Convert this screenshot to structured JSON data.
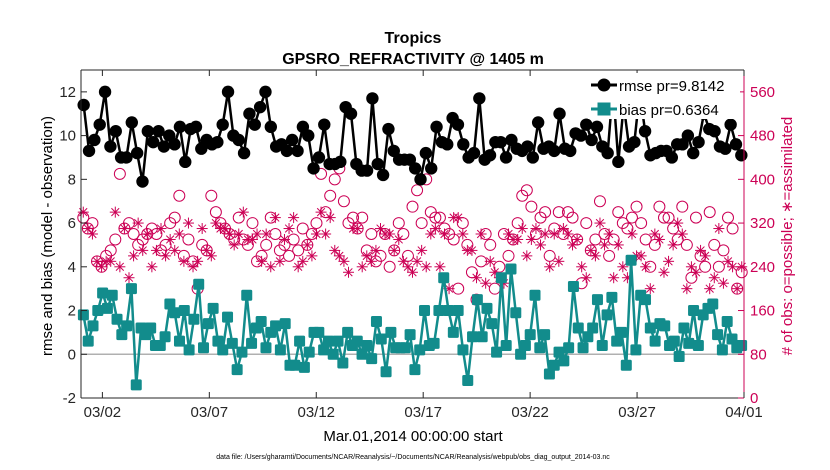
{
  "chart_data": {
    "type": "line",
    "title": "Tropics",
    "subtitle": "GPSRO_REFRACTIVITY @ 1405 m",
    "xlabel": "Mar.01,2014 00:00:00 start",
    "ylabel": "rmse and bias (model - observation)",
    "ylabel_right": "# of obs: o=possible; ∗=assimilated",
    "xlim": [
      0,
      31
    ],
    "ylim": [
      -2,
      13
    ],
    "ylim_right": [
      0,
      600
    ],
    "x_tick_values": [
      1,
      6,
      11,
      16,
      21,
      26,
      31
    ],
    "x_tick_labels": [
      "03/02",
      "03/07",
      "03/12",
      "03/17",
      "03/22",
      "03/27",
      "04/01"
    ],
    "y_ticks": [
      -2,
      0,
      2,
      4,
      6,
      8,
      10,
      12
    ],
    "y_ticks_right": [
      0,
      80,
      160,
      240,
      320,
      400,
      480,
      560
    ],
    "footnote": "data file: /Users/gharamti/Documents/NCAR/Reanalysis/~/Documents/NCAR/Reanalysis/webpub/obs_diag_output_2014-03.nc",
    "legend": {
      "location": "top-right",
      "entries": [
        "rmse pr=9.8142",
        "bias pr=0.6364"
      ]
    },
    "colors": {
      "rmse": "#000000",
      "bias": "#128C8C",
      "obs": "#CC0055",
      "zero_line": "#B0B0B0"
    },
    "series": [
      {
        "name": "rmse",
        "axis": "left",
        "values": [
          11.4,
          9.3,
          9.8,
          10.5,
          12.0,
          9.5,
          10.2,
          9.0,
          9.0,
          10.6,
          9.2,
          7.9,
          10.2,
          9.7,
          10.2,
          9.5,
          10.0,
          9.6,
          10.4,
          8.8,
          10.3,
          10.4,
          9.4,
          9.8,
          9.6,
          9.7,
          10.5,
          12.0,
          10.0,
          9.8,
          9.2,
          11.0,
          10.5,
          11.3,
          12.0,
          10.4,
          9.5,
          9.6,
          9.3,
          9.8,
          9.3,
          10.4,
          10.0,
          8.5,
          9.0,
          10.5,
          8.7,
          8.7,
          8.8,
          11.3,
          11.0,
          8.7,
          8.4,
          8.4,
          11.7,
          8.7,
          8.2,
          10.3,
          9.3,
          8.9,
          8.9,
          8.9,
          8.5,
          8.0,
          9.2,
          8.5,
          10.4,
          9.7,
          9.6,
          10.8,
          10.5,
          9.6,
          9.0,
          9.2,
          11.7,
          8.9,
          9.1,
          9.7,
          9.7,
          9.0,
          9.8,
          9.4,
          9.3,
          9.5,
          9.0,
          10.6,
          9.4,
          9.5,
          9.3,
          11.0,
          9.4,
          9.3,
          10.1,
          10.0,
          10.5,
          9.8,
          10.4,
          9.5,
          9.2,
          12.2,
          8.8,
          11.4,
          9.5,
          9.7,
          12.0,
          10.2,
          9.1,
          9.2,
          9.3,
          9.3,
          9.0,
          9.6,
          9.6,
          10.0,
          9.2,
          9.7,
          11.0,
          10.3,
          10.2,
          9.5,
          9.4,
          10.5,
          9.6,
          9.1
        ]
      },
      {
        "name": "bias",
        "axis": "left",
        "values": [
          1.8,
          0.6,
          1.3,
          2.0,
          2.8,
          2.1,
          2.7,
          1.6,
          0.9,
          1.3,
          3.0,
          -1.4,
          1.2,
          0.9,
          1.2,
          0.4,
          0.4,
          0.8,
          2.3,
          1.9,
          0.6,
          2.0,
          0.2,
          1.6,
          3.2,
          0.3,
          1.4,
          2.1,
          0.6,
          0.2,
          1.7,
          0.5,
          -0.7,
          0.1,
          2.7,
          0.5,
          1.2,
          1.5,
          0.3,
          1.0,
          1.3,
          0.2,
          1.4,
          -0.5,
          -0.5,
          0.6,
          -0.6,
          0.1,
          1.0,
          1.0,
          0.2,
          0.6,
          0.0,
          0.6,
          -0.4,
          1.0,
          0.4,
          0.6,
          0.0,
          0.4,
          -0.2,
          1.5,
          0.7,
          -0.8,
          1.0,
          0.3,
          0.3,
          0.3,
          0.9,
          -0.7,
          0.2,
          2.0,
          0.4,
          0.5,
          2.0,
          3.5,
          2.0,
          1.0,
          2.0,
          0.2,
          -1.2,
          0.8,
          2.5,
          0.8,
          2.1,
          1.4,
          0.1,
          3.5,
          0.4,
          3.9,
          1.9,
          0.0,
          0.4,
          0.9,
          2.7,
          0.3,
          0.9,
          -0.9,
          -0.5,
          0.1,
          -0.3,
          0.3,
          3.1,
          1.2,
          0.3,
          0.8,
          1.2,
          2.5,
          0.4,
          1.8,
          2.6,
          0.6,
          1.0,
          -0.5,
          4.3,
          0.2,
          2.7,
          2.5,
          1.2,
          0.6,
          1.4,
          1.3,
          0.4,
          0.6,
          -0.1,
          1.2,
          0.5,
          2.0,
          0.4,
          1.8,
          2.1,
          2.3,
          0.9,
          0.2,
          1.5,
          0.7,
          0.3,
          0.4
        ]
      },
      {
        "name": "obs possible",
        "axis": "right",
        "values": [
          330,
          310,
          320,
          250,
          240,
          260,
          270,
          290,
          410,
          310,
          320,
          300,
          280,
          290,
          300,
          310,
          300,
          270,
          280,
          320,
          330,
          370,
          260,
          290,
          250,
          200,
          280,
          270,
          370,
          340,
          320,
          310,
          300,
          290,
          330,
          290,
          280,
          320,
          250,
          260,
          280,
          330,
          300,
          270,
          280,
          260,
          290,
          270,
          310,
          280,
          300,
          320,
          410,
          340,
          370,
          400,
          420,
          360,
          320,
          330,
          310,
          330,
          270,
          300,
          250,
          260,
          300,
          240,
          270,
          320,
          300,
          260,
          350,
          380,
          320,
          400,
          340,
          330,
          330,
          310,
          300,
          290,
          200,
          320,
          280,
          230,
          180,
          250,
          300,
          280,
          200,
          240,
          300,
          260,
          290,
          320,
          370,
          380,
          350,
          300,
          330,
          340,
          260,
          310,
          340,
          300,
          340,
          330,
          290,
          210,
          320,
          270,
          290,
          360,
          300,
          260,
          290,
          340,
          320,
          310,
          330,
          350,
          320,
          290,
          240,
          280,
          350,
          330,
          330,
          310,
          290,
          350,
          280,
          220,
          330,
          260,
          240,
          340,
          280,
          240,
          270,
          330,
          310,
          200,
          230
        ]
      },
      {
        "name": "obs assimilated",
        "axis": "right",
        "values": [
          340,
          310,
          300,
          250,
          240,
          250,
          250,
          340,
          240,
          310,
          220,
          260,
          320,
          270,
          300,
          240,
          270,
          310,
          260,
          290,
          270,
          300,
          250,
          320,
          240,
          250,
          310,
          270,
          260,
          320,
          310,
          310,
          300,
          280,
          300,
          340,
          290,
          290,
          300,
          250,
          300,
          240,
          330,
          250,
          290,
          310,
          330,
          240,
          250,
          280,
          260,
          300,
          340,
          300,
          330,
          270,
          260,
          250,
          230,
          310,
          310,
          240,
          260,
          250,
          270,
          310,
          300,
          300,
          270,
          290,
          250,
          240,
          230,
          250,
          270,
          240,
          300,
          310,
          240,
          300,
          200,
          330,
          330,
          300,
          270,
          270,
          220,
          300,
          210,
          250,
          230,
          220,
          210,
          300,
          290,
          290,
          310,
          260,
          290,
          310,
          280,
          300,
          240,
          300,
          250,
          310,
          300,
          280,
          290,
          240,
          220,
          270,
          260,
          320,
          280,
          300,
          220,
          280,
          240,
          220,
          300,
          260,
          260,
          240,
          200,
          300,
          290,
          230,
          250,
          280,
          320,
          300,
          200,
          240,
          230,
          270,
          260,
          200,
          220,
          310,
          210,
          250,
          240,
          200,
          240
        ]
      }
    ]
  }
}
